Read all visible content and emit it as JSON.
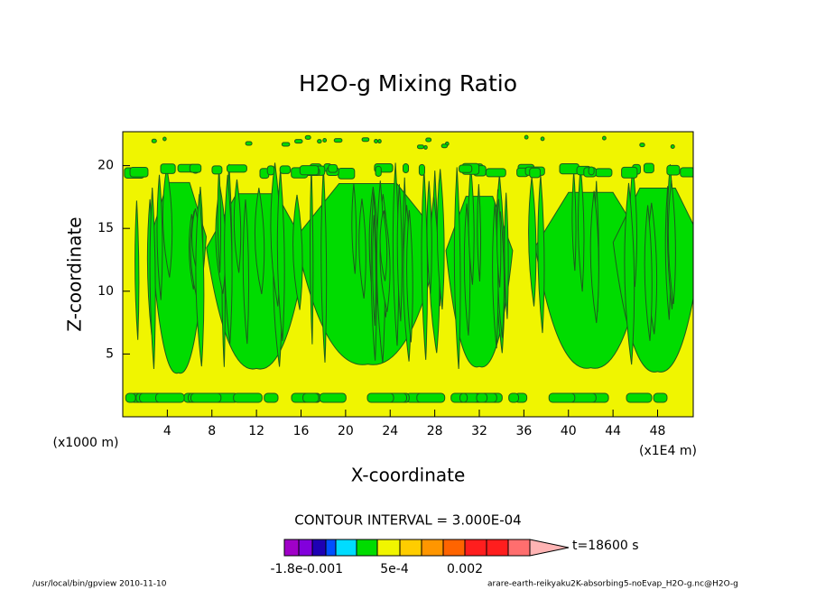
{
  "chart_data": {
    "type": "contour",
    "title": "H2O-g Mixing Ratio",
    "x_label": "X-coordinate",
    "y_label": "Z-coordinate",
    "x_unit": "(x1E4 m)",
    "y_unit": "(x1000 m)",
    "xlim": [
      0,
      51.2
    ],
    "xticks": [
      4,
      8,
      12,
      16,
      20,
      24,
      28,
      32,
      36,
      40,
      44,
      48
    ],
    "ylim": [
      0,
      22.7
    ],
    "yticks": [
      5,
      10,
      15,
      20
    ],
    "contour_interval": "CONTOUR INTERVAL = 3.000E-04",
    "time": "t=18600 s",
    "colorbar": {
      "colors": [
        "#a000c8",
        "#8200dc",
        "#1e00b4",
        "#0050ff",
        "#00dcff",
        "#00dc00",
        "#f0f500",
        "#ffcd00",
        "#ff9600",
        "#ff6400",
        "#ff1e1e",
        "#ff1e1e",
        "#ff6e6e",
        "#ffb4b4"
      ],
      "labels": [
        "-1.8e-",
        "0.001",
        "5e-4",
        "0.002"
      ]
    },
    "footer_left": "/usr/local/bin/gpview  2010-11-10",
    "footer_right": "arare-earth-reikyaku2K-absorbing5-noEvap_H2O-g.nc@H2O-g"
  }
}
